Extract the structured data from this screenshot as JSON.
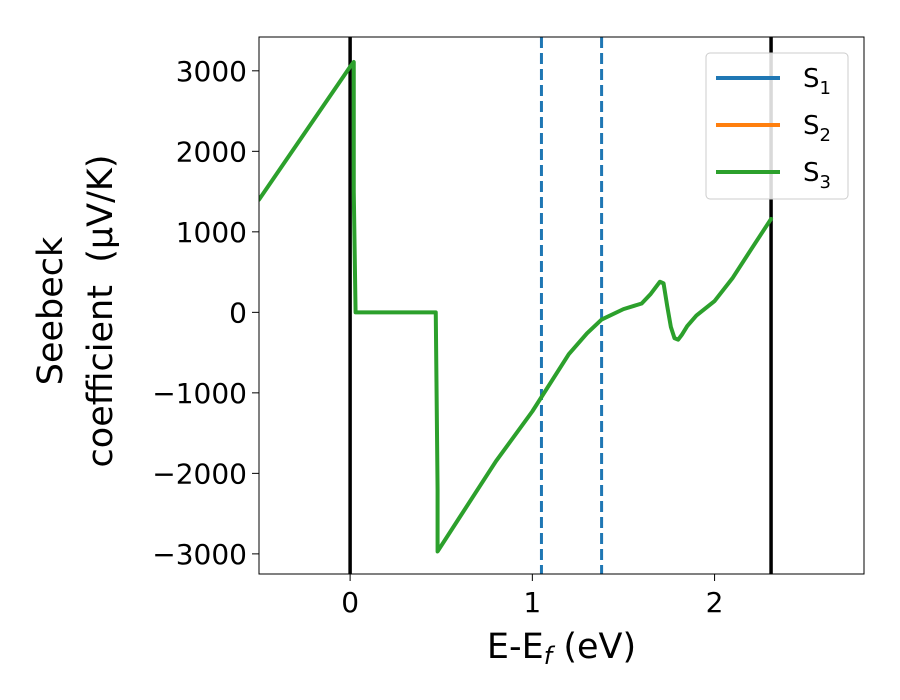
{
  "chart_data": {
    "type": "line",
    "xlabel": "E-E_f (eV)",
    "xlabel_parts": {
      "base": "E-E",
      "sub": "f",
      "rest": " (eV)"
    },
    "ylabel_line1": "Seebeck",
    "ylabel_line2": "coefficient  (μV/K)",
    "xlim": [
      -0.5,
      2.82
    ],
    "ylim": [
      -3250,
      3420
    ],
    "x_ticks": [
      0,
      1,
      2
    ],
    "y_ticks": [
      3000,
      2000,
      1000,
      0,
      -1000,
      -2000,
      -3000
    ],
    "x_tick_labels": [
      "0",
      "1",
      "2"
    ],
    "y_tick_labels": [
      "3000",
      "2000",
      "1000",
      "0",
      "−1000",
      "−2000",
      "−3000"
    ],
    "grid": false,
    "legend": {
      "placement": "top-right",
      "entries": [
        {
          "base": "S",
          "sub": "1",
          "color": "#1f77b4"
        },
        {
          "base": "S",
          "sub": "2",
          "color": "#ff7f0e"
        },
        {
          "base": "S",
          "sub": "3",
          "color": "#2ca02c"
        }
      ]
    },
    "vertical_lines": [
      {
        "x": 0.0,
        "style": "solid",
        "color": "#000000"
      },
      {
        "x": 2.31,
        "style": "solid",
        "color": "#000000"
      },
      {
        "x": 1.05,
        "style": "dashed",
        "color": "#1f77b4"
      },
      {
        "x": 1.38,
        "style": "dashed",
        "color": "#1f77b4"
      }
    ],
    "series": [
      {
        "name": "S3",
        "color": "#2ca02c",
        "x": [
          -0.5,
          0.0,
          0.02,
          0.02,
          0.03,
          0.47,
          0.48,
          0.48,
          0.6,
          0.8,
          1.0,
          1.2,
          1.3,
          1.38,
          1.5,
          1.6,
          1.65,
          1.7,
          1.72,
          1.74,
          1.76,
          1.78,
          1.8,
          1.82,
          1.85,
          1.9,
          1.95,
          2.0,
          2.1,
          2.2,
          2.31
        ],
        "values": [
          1400,
          3050,
          3110,
          1500,
          0,
          0,
          -2200,
          -2970,
          -2550,
          -1850,
          -1230,
          -520,
          -260,
          -90,
          40,
          110,
          230,
          380,
          360,
          80,
          -180,
          -320,
          -340,
          -280,
          -170,
          -40,
          50,
          140,
          430,
          780,
          1160
        ]
      }
    ]
  }
}
